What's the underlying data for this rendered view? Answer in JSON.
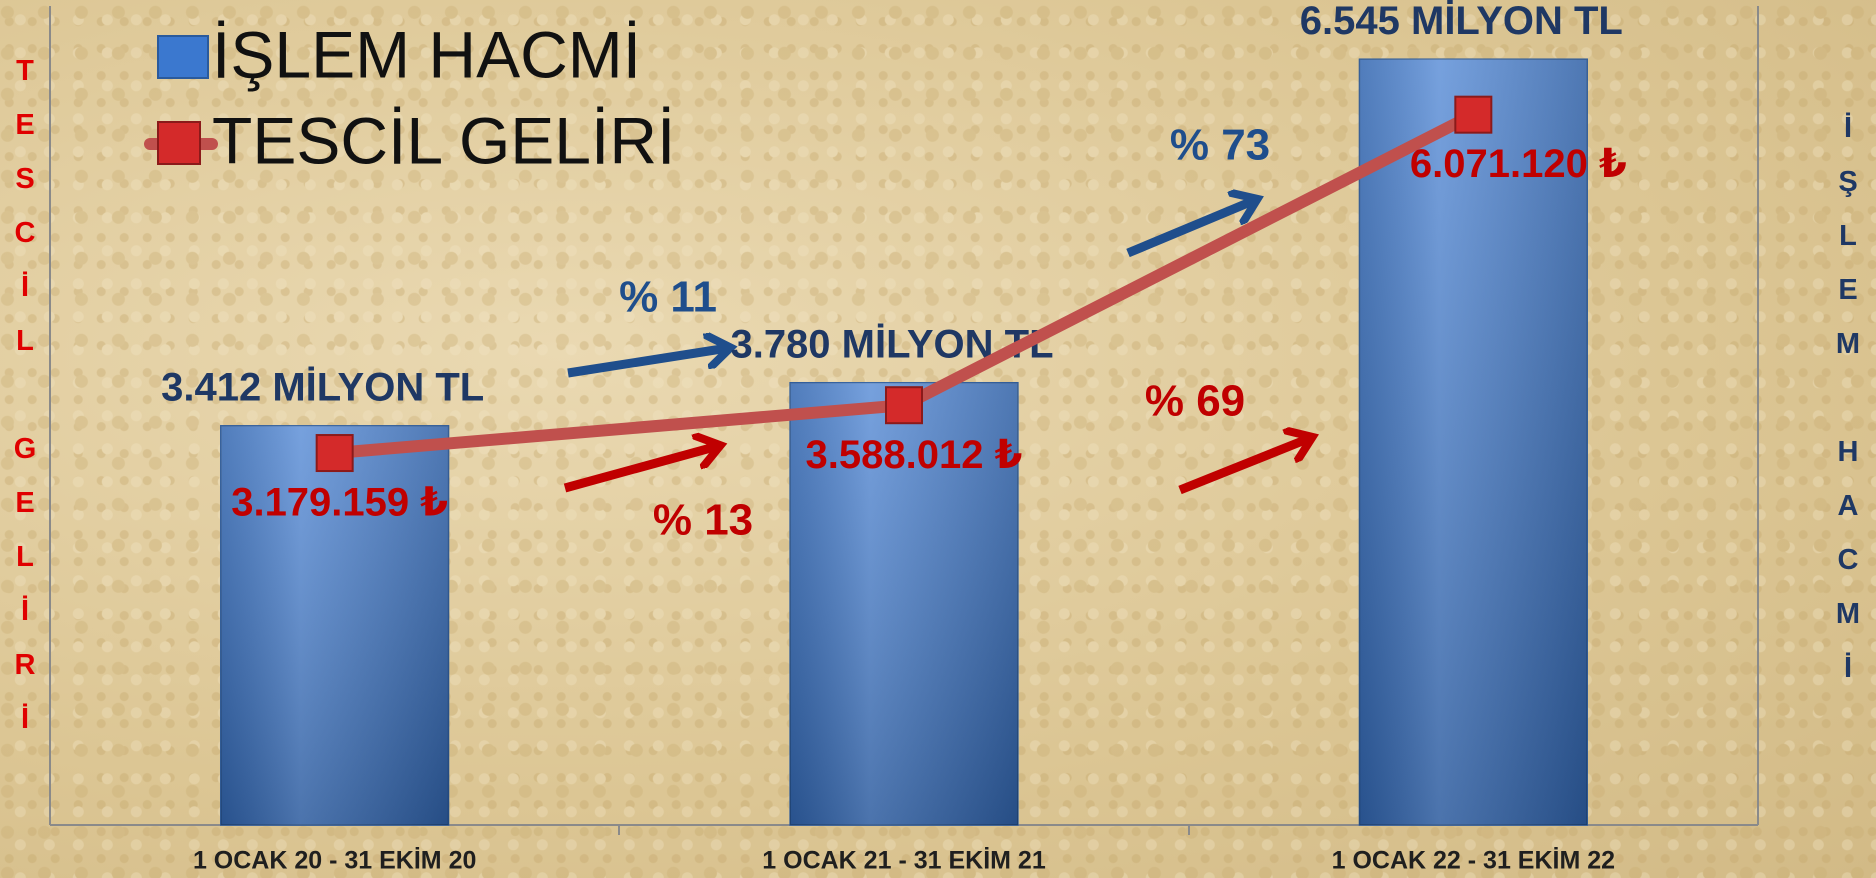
{
  "chart_data": {
    "type": "combo",
    "categories": [
      "1 OCAK 20 - 31 EKİM 20",
      "1 OCAK 21 - 31 EKİM 21",
      "1 OCAK 22 - 31 EKİM 22"
    ],
    "series": [
      {
        "name": "İŞLEM HACMİ",
        "type": "bar",
        "axis": "y2",
        "color": "#3b78cf",
        "values": [
          3412,
          3780,
          6545
        ],
        "value_labels": [
          "3.412 MİLYON TL",
          "3.780 MİLYON TL",
          "6.545 MİLYON TL"
        ]
      },
      {
        "name": "TESCİL GELİRİ",
        "type": "line",
        "axis": "y",
        "color": "#c0504d",
        "values": [
          3179159,
          3588012,
          6071120
        ],
        "value_labels": [
          "3.179.159 ₺",
          "3.588.012 ₺",
          "6.071.120 ₺"
        ]
      }
    ],
    "ylabel": "TESCİL GELİRİ",
    "y2label": "İŞLEM HACMİ",
    "ylim": [
      0,
      7000000
    ],
    "y2lim": [
      0,
      7000
    ],
    "annotations": [
      "% 11",
      "% 13",
      "% 73",
      "% 69"
    ]
  }
}
